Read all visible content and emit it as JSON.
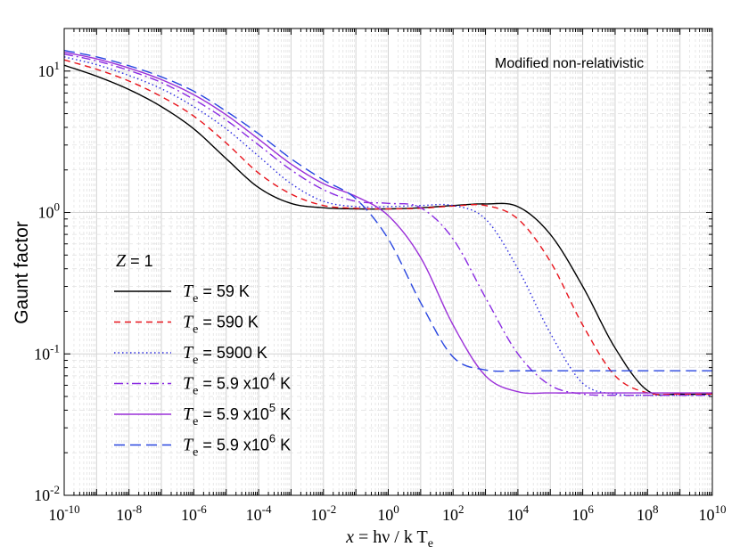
{
  "chart_data": {
    "type": "line",
    "title": "",
    "annotation": "Modified non-relativistic",
    "ylabel": "Gaunt factor",
    "xlabel": {
      "x": "x",
      "eq": " = h",
      "nu": "ν",
      "slash": " / k T",
      "sub": "e"
    },
    "xscale": "log",
    "yscale": "log",
    "xlim": [
      1e-10,
      10000000000.0
    ],
    "ylim": [
      0.01,
      20
    ],
    "grid": true,
    "legend_position": "center-left",
    "x_ticks": [
      {
        "base": "10",
        "exp": "-10"
      },
      {
        "base": "10",
        "exp": "-8"
      },
      {
        "base": "10",
        "exp": "-6"
      },
      {
        "base": "10",
        "exp": "-4"
      },
      {
        "base": "10",
        "exp": "-2"
      },
      {
        "base": "10",
        "exp": "0"
      },
      {
        "base": "10",
        "exp": "2"
      },
      {
        "base": "10",
        "exp": "4"
      },
      {
        "base": "10",
        "exp": "6"
      },
      {
        "base": "10",
        "exp": "8"
      },
      {
        "base": "10",
        "exp": "10"
      }
    ],
    "y_ticks": [
      {
        "base": "10",
        "exp": "-2"
      },
      {
        "base": "10",
        "exp": "-1"
      },
      {
        "base": "10",
        "exp": "0"
      },
      {
        "base": "10",
        "exp": "1"
      }
    ],
    "legend_title": {
      "var": "Z",
      "rest": " = 1"
    },
    "series": [
      {
        "label_prefix": "T",
        "label_sub": "e",
        "label_main": " = 59 K",
        "label_exp": "",
        "label_suffix": "",
        "color": "#000000",
        "dash": "solid",
        "x": [
          1e-10,
          1e-09,
          1e-08,
          1e-07,
          1e-06,
          1e-05,
          0.0001,
          0.001,
          0.01,
          0.1,
          1,
          10,
          100,
          1000,
          10000.0,
          100000.0,
          1000000.0,
          10000000.0,
          100000000.0,
          1000000000.0,
          10000000000.0
        ],
        "y": [
          11,
          9.2,
          7.4,
          5.6,
          3.9,
          2.4,
          1.5,
          1.16,
          1.08,
          1.06,
          1.06,
          1.08,
          1.12,
          1.15,
          1.1,
          0.7,
          0.3,
          0.11,
          0.055,
          0.052,
          0.052
        ]
      },
      {
        "label_prefix": "T",
        "label_sub": "e",
        "label_main": " = 590 K",
        "label_exp": "",
        "label_suffix": "",
        "color": "#e8141c",
        "dash": "7,5",
        "x": [
          1e-10,
          1e-09,
          1e-08,
          1e-07,
          1e-06,
          1e-05,
          0.0001,
          0.001,
          0.01,
          0.1,
          1,
          10,
          100,
          1000,
          10000.0,
          100000.0,
          1000000.0,
          10000000.0,
          100000000.0,
          1000000000.0,
          10000000000.0
        ],
        "y": [
          12,
          10.3,
          8.5,
          6.6,
          4.8,
          3.1,
          1.9,
          1.35,
          1.12,
          1.07,
          1.06,
          1.07,
          1.11,
          1.12,
          0.9,
          0.45,
          0.16,
          0.07,
          0.053,
          0.052,
          0.052
        ]
      },
      {
        "label_prefix": "T",
        "label_sub": "e",
        "label_main": " = 5900 K",
        "label_exp": "",
        "label_suffix": "",
        "color": "#2a2ae0",
        "dash": "1.5,3",
        "x": [
          1e-10,
          1e-09,
          1e-08,
          1e-07,
          1e-06,
          1e-05,
          0.0001,
          0.001,
          0.01,
          0.1,
          1,
          10,
          100,
          1000,
          10000.0,
          100000.0,
          1000000.0,
          10000000.0,
          100000000.0,
          1000000000.0,
          10000000000.0
        ],
        "y": [
          12.6,
          11.1,
          9.3,
          7.5,
          5.6,
          3.9,
          2.5,
          1.6,
          1.2,
          1.1,
          1.1,
          1.12,
          1.12,
          0.9,
          0.4,
          0.14,
          0.062,
          0.052,
          0.051,
          0.051,
          0.051
        ]
      },
      {
        "label_prefix": "T",
        "label_sub": "e",
        "label_main": " = 5.9 x10",
        "label_exp": "4",
        "label_suffix": " K",
        "color": "#8a2be2",
        "dash": "10,4,2,4",
        "x": [
          1e-10,
          1e-09,
          1e-08,
          1e-07,
          1e-06,
          1e-05,
          0.0001,
          0.001,
          0.01,
          0.1,
          1,
          10,
          100,
          1000,
          10000.0,
          100000.0,
          1000000.0,
          10000000.0,
          100000000.0,
          1000000000.0,
          10000000000.0
        ],
        "y": [
          13.2,
          11.8,
          10.1,
          8.3,
          6.3,
          4.5,
          3.0,
          2.0,
          1.45,
          1.2,
          1.16,
          1.08,
          0.65,
          0.25,
          0.1,
          0.06,
          0.052,
          0.051,
          0.051,
          0.051,
          0.051
        ]
      },
      {
        "label_prefix": "T",
        "label_sub": "e",
        "label_main": " = 5.9 x10",
        "label_exp": "5",
        "label_suffix": " K",
        "color": "#9b30d9",
        "dash": "solid",
        "x": [
          1e-10,
          1e-09,
          1e-08,
          1e-07,
          1e-06,
          1e-05,
          0.0001,
          0.001,
          0.01,
          0.1,
          1,
          10,
          100,
          1000,
          10000.0,
          100000.0,
          1000000.0,
          10000000.0,
          100000000.0,
          1000000000.0,
          10000000000.0
        ],
        "y": [
          13.6,
          12.2,
          10.5,
          8.7,
          6.8,
          4.9,
          3.3,
          2.2,
          1.6,
          1.3,
          0.95,
          0.48,
          0.16,
          0.07,
          0.054,
          0.053,
          0.053,
          0.053,
          0.053,
          0.053,
          0.053
        ]
      },
      {
        "label_prefix": "T",
        "label_sub": "e",
        "label_main": " = 5.9 x10",
        "label_exp": "6",
        "label_suffix": " K",
        "color": "#2946e0",
        "dash": "12,6",
        "x": [
          1e-10,
          1e-09,
          1e-08,
          1e-07,
          1e-06,
          1e-05,
          0.0001,
          0.001,
          0.01,
          0.1,
          1,
          10,
          100,
          1000,
          10000.0,
          100000.0,
          1000000.0,
          10000000.0,
          100000000.0,
          1000000000.0,
          10000000000.0
        ],
        "y": [
          14,
          12.6,
          10.9,
          9.1,
          7.2,
          5.2,
          3.6,
          2.4,
          1.7,
          1.25,
          0.65,
          0.23,
          0.095,
          0.077,
          0.076,
          0.076,
          0.076,
          0.076,
          0.076,
          0.076,
          0.076
        ]
      }
    ]
  }
}
